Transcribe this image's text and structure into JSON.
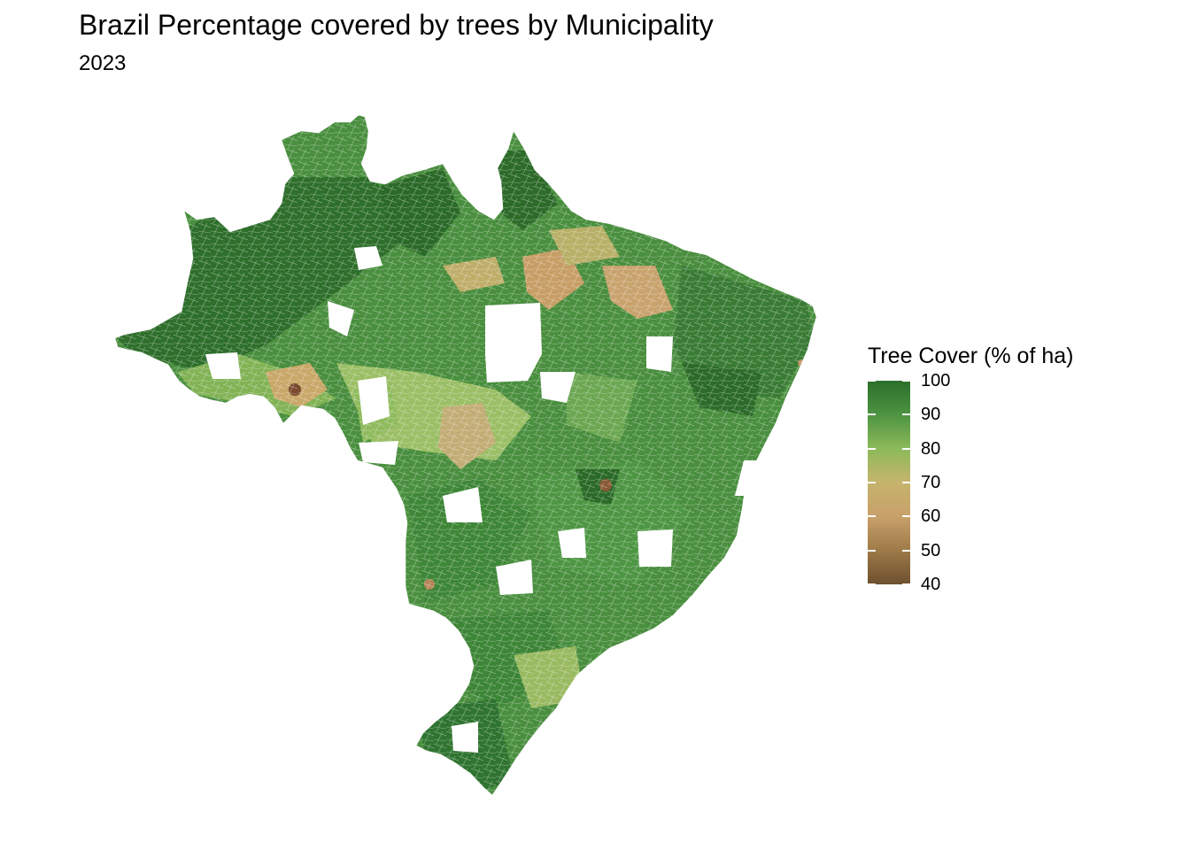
{
  "title": "Brazil Percentage covered by trees by Municipality",
  "subtitle": "2023",
  "legend": {
    "title": "Tree Cover (% of ha)",
    "min": 40,
    "max": 100,
    "ticks": [
      "100",
      "90",
      "80",
      "70",
      "60",
      "50",
      "40"
    ],
    "colors": {
      "100": "#2b6e2b",
      "90": "#4e9442",
      "80": "#8cba5a",
      "70": "#c6b46c",
      "60": "#c8a06a",
      "50": "#9e7a48",
      "40": "#6e5030"
    }
  },
  "chart_data": {
    "type": "choropleth",
    "region": "Brazil",
    "unit": "municipality",
    "variable": "Tree Cover (% of ha)",
    "year": "2023",
    "color_scale_range": [
      40,
      100
    ]
  }
}
